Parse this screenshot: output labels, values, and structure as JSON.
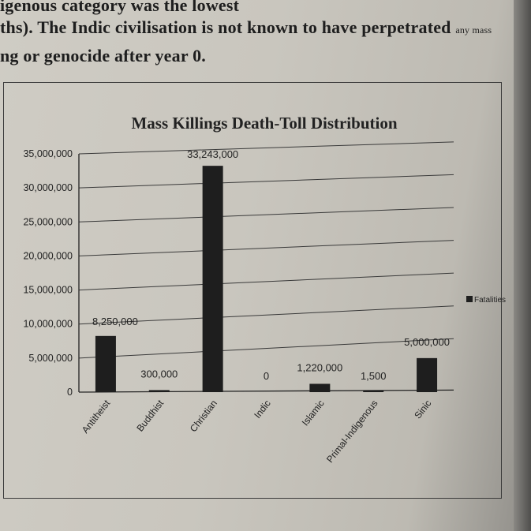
{
  "text": {
    "line1": "igenous category was the lowest",
    "line2": "ths). The Indic civilisation is not known to have perpetrated",
    "line2_small": "any mass",
    "line3": "ng or genocide after year 0."
  },
  "chart_data": {
    "type": "bar",
    "title": "Mass Killings Death-Toll Distribution",
    "categories": [
      "Antitheist",
      "Buddhist",
      "Christian",
      "Indic",
      "Islamic",
      "Primal-Indigenous",
      "Sinic"
    ],
    "series": [
      {
        "name": "Fatalities",
        "values": [
          8250000,
          300000,
          33243000,
          0,
          1220000,
          1500,
          5000000
        ],
        "labels": [
          "8,250,000",
          "300,000",
          "33,243,000",
          "0",
          "1,220,000",
          "1,500",
          "5,000,000"
        ]
      }
    ],
    "yticks": [
      "0",
      "5,000,000",
      "10,000,000",
      "15,000,000",
      "20,000,000",
      "25,000,000",
      "30,000,000",
      "35,000,000"
    ],
    "ylim": [
      0,
      35000000
    ],
    "grid": true,
    "legend_position": "right",
    "bar_color": "#1e1e1e"
  }
}
